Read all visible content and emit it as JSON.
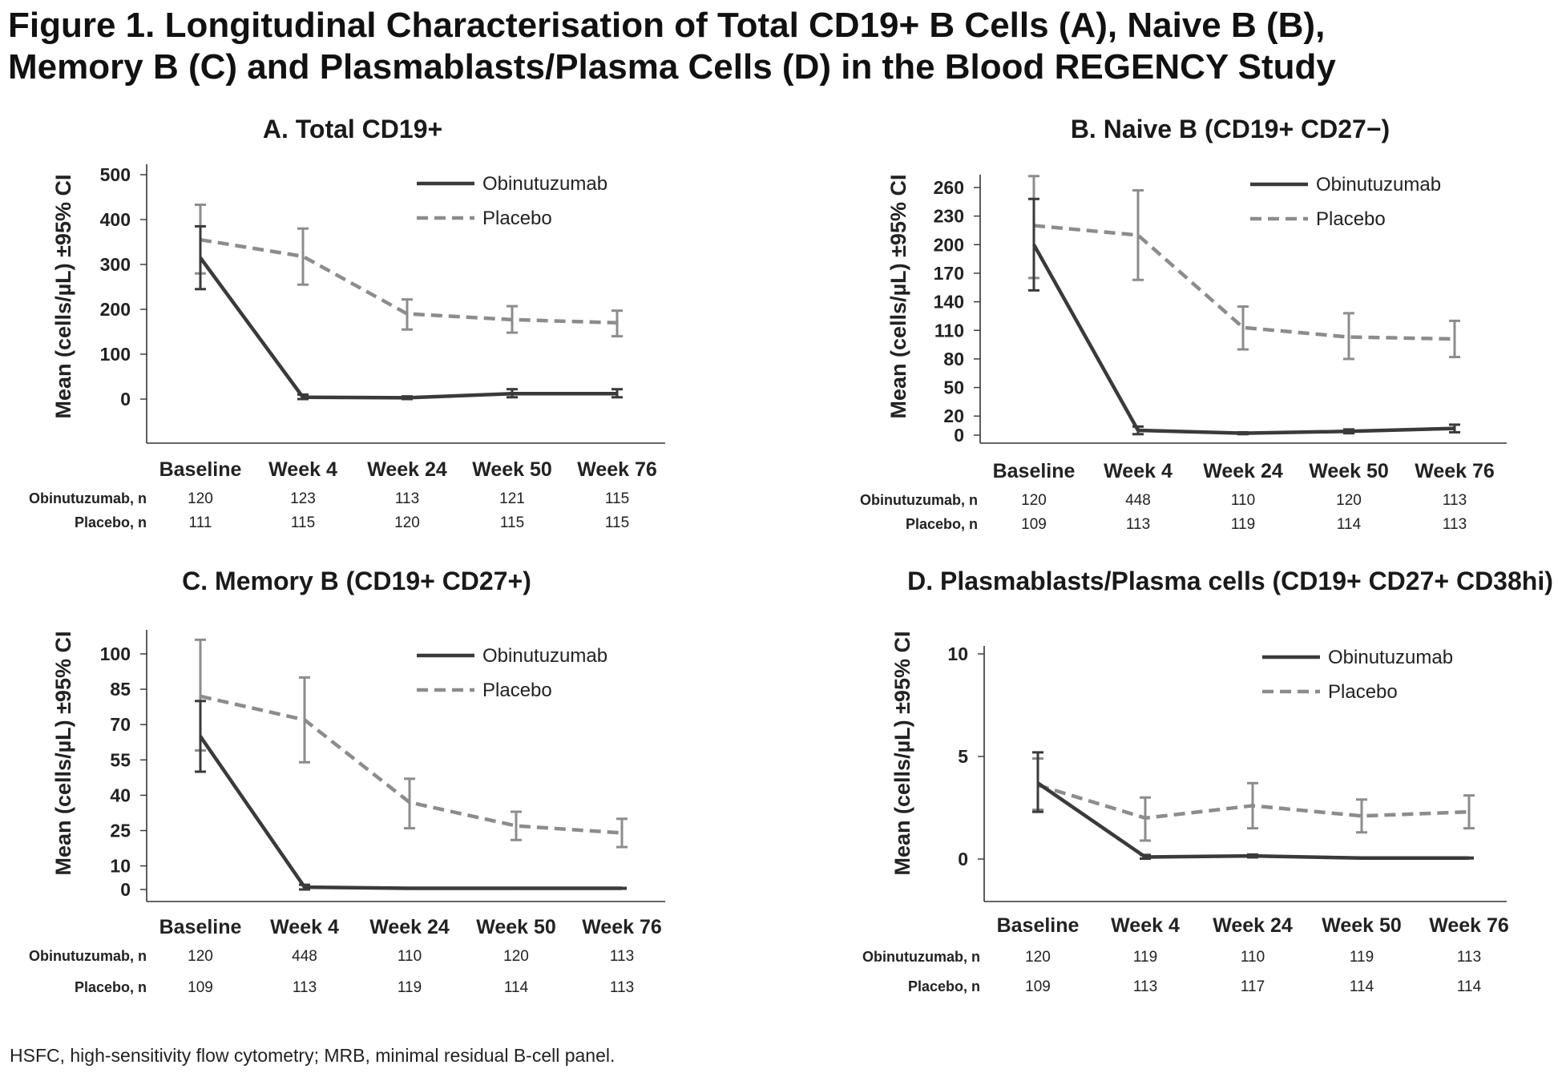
{
  "figure": {
    "title_line1": "Figure 1. Longitudinal Characterisation of Total CD19+ B Cells (A), Naive B (B),",
    "title_line2": "Memory B (C) and Plasmablasts/Plasma Cells (D) in the Blood REGENCY Study",
    "footnote": "HSFC, high-sensitivity flow cytometry; MRB, minimal residual B-cell panel."
  },
  "colors": {
    "obinutuzumab": "#3a3a3a",
    "placebo": "#8c8c8c",
    "axis": "#333333"
  },
  "chart_data": [
    {
      "type": "line",
      "title": "A. Total CD19+",
      "ylabel": "Mean (cells/µL) ±95% CI",
      "categories": [
        "Baseline",
        "Week 4",
        "Week 24",
        "Week 50",
        "Week 76"
      ],
      "yticks": [
        0,
        100,
        200,
        300,
        400,
        500
      ],
      "ylim": [
        -100,
        500
      ],
      "legend_position": "top-right",
      "series": [
        {
          "name": "Obinutuzumab",
          "style": "solid",
          "values": [
            315,
            4,
            3,
            12,
            12
          ],
          "lower": [
            245,
            0,
            0,
            4,
            4
          ],
          "upper": [
            385,
            10,
            6,
            22,
            22
          ]
        },
        {
          "name": "Placebo",
          "style": "dashed",
          "values": [
            355,
            318,
            190,
            177,
            170
          ],
          "lower": [
            280,
            255,
            155,
            148,
            140
          ],
          "upper": [
            433,
            380,
            222,
            207,
            197
          ]
        }
      ],
      "n_table": [
        {
          "label": "Obinutuzumab, n",
          "values": [
            "120",
            "123",
            "113",
            "121",
            "115"
          ]
        },
        {
          "label": "Placebo, n",
          "values": [
            "111",
            "115",
            "120",
            "115",
            "115"
          ]
        }
      ]
    },
    {
      "type": "line",
      "title": "B. Naive B (CD19+ CD27−)",
      "ylabel": "Mean (cells/µL) ±95% CI",
      "categories": [
        "Baseline",
        "Week 4",
        "Week 24",
        "Week 50",
        "Week 76"
      ],
      "yticks": [
        0,
        20,
        50,
        80,
        110,
        140,
        170,
        200,
        230,
        260
      ],
      "ylim": [
        0,
        275
      ],
      "legend_position": "top-right",
      "series": [
        {
          "name": "Obinutuzumab",
          "style": "solid",
          "values": [
            200,
            5,
            2,
            4,
            7
          ],
          "lower": [
            152,
            1,
            1,
            2,
            3
          ],
          "upper": [
            248,
            9,
            3,
            6,
            11
          ]
        },
        {
          "name": "Placebo",
          "style": "dashed",
          "values": [
            220,
            210,
            113,
            103,
            101
          ],
          "lower": [
            165,
            163,
            90,
            80,
            82
          ],
          "upper": [
            272,
            257,
            135,
            128,
            120
          ]
        }
      ],
      "n_table": [
        {
          "label": "Obinutuzumab, n",
          "values": [
            "120",
            "448",
            "110",
            "120",
            "113"
          ]
        },
        {
          "label": "Placebo, n",
          "values": [
            "109",
            "113",
            "119",
            "114",
            "113"
          ]
        }
      ]
    },
    {
      "type": "line",
      "title": "C. Memory B (CD19+ CD27+)",
      "ylabel": "Mean (cells/µL) ±95% CI",
      "categories": [
        "Baseline",
        "Week 4",
        "Week 24",
        "Week 50",
        "Week 76"
      ],
      "yticks": [
        0,
        10,
        25,
        40,
        55,
        70,
        85,
        100
      ],
      "ylim": [
        -5,
        110
      ],
      "legend_position": "top-right",
      "series": [
        {
          "name": "Obinutuzumab",
          "style": "solid",
          "values": [
            65,
            1,
            0.5,
            0.5,
            0.5
          ],
          "lower": [
            50,
            0,
            null,
            null,
            null
          ],
          "upper": [
            80,
            2,
            null,
            null,
            null
          ]
        },
        {
          "name": "Placebo",
          "style": "dashed",
          "values": [
            82,
            72,
            37,
            27,
            24
          ],
          "lower": [
            59,
            54,
            26,
            21,
            18
          ],
          "upper": [
            106,
            90,
            47,
            33,
            30
          ]
        }
      ],
      "n_table": [
        {
          "label": "Obinutuzumab, n",
          "values": [
            "120",
            "448",
            "110",
            "120",
            "113"
          ]
        },
        {
          "label": "Placebo, n",
          "values": [
            "109",
            "113",
            "119",
            "114",
            "113"
          ]
        }
      ]
    },
    {
      "type": "line",
      "title": "D. Plasmablasts/Plasma cells (CD19+ CD27+ CD38hi)",
      "ylabel": "Mean (cells/µL) ±95% CI",
      "categories": [
        "Baseline",
        "Week 4",
        "Week 24",
        "Week 50",
        "Week 76"
      ],
      "yticks": [
        0,
        5,
        10
      ],
      "ylim": [
        -2,
        10
      ],
      "legend_position": "top-right",
      "series": [
        {
          "name": "Obinutuzumab",
          "style": "solid",
          "values": [
            3.7,
            0.1,
            0.15,
            0.05,
            0.05
          ],
          "lower": [
            2.3,
            0.02,
            0.08,
            null,
            null
          ],
          "upper": [
            5.2,
            0.2,
            0.22,
            null,
            null
          ]
        },
        {
          "name": "Placebo",
          "style": "dashed",
          "values": [
            3.6,
            2.0,
            2.6,
            2.1,
            2.3
          ],
          "lower": [
            2.4,
            0.9,
            1.5,
            1.3,
            1.5
          ],
          "upper": [
            4.9,
            3.0,
            3.7,
            2.9,
            3.1
          ]
        }
      ],
      "n_table": [
        {
          "label": "Obinutuzumab, n",
          "values": [
            "120",
            "119",
            "110",
            "119",
            "113"
          ]
        },
        {
          "label": "Placebo, n",
          "values": [
            "109",
            "113",
            "117",
            "114",
            "114"
          ]
        }
      ]
    }
  ]
}
